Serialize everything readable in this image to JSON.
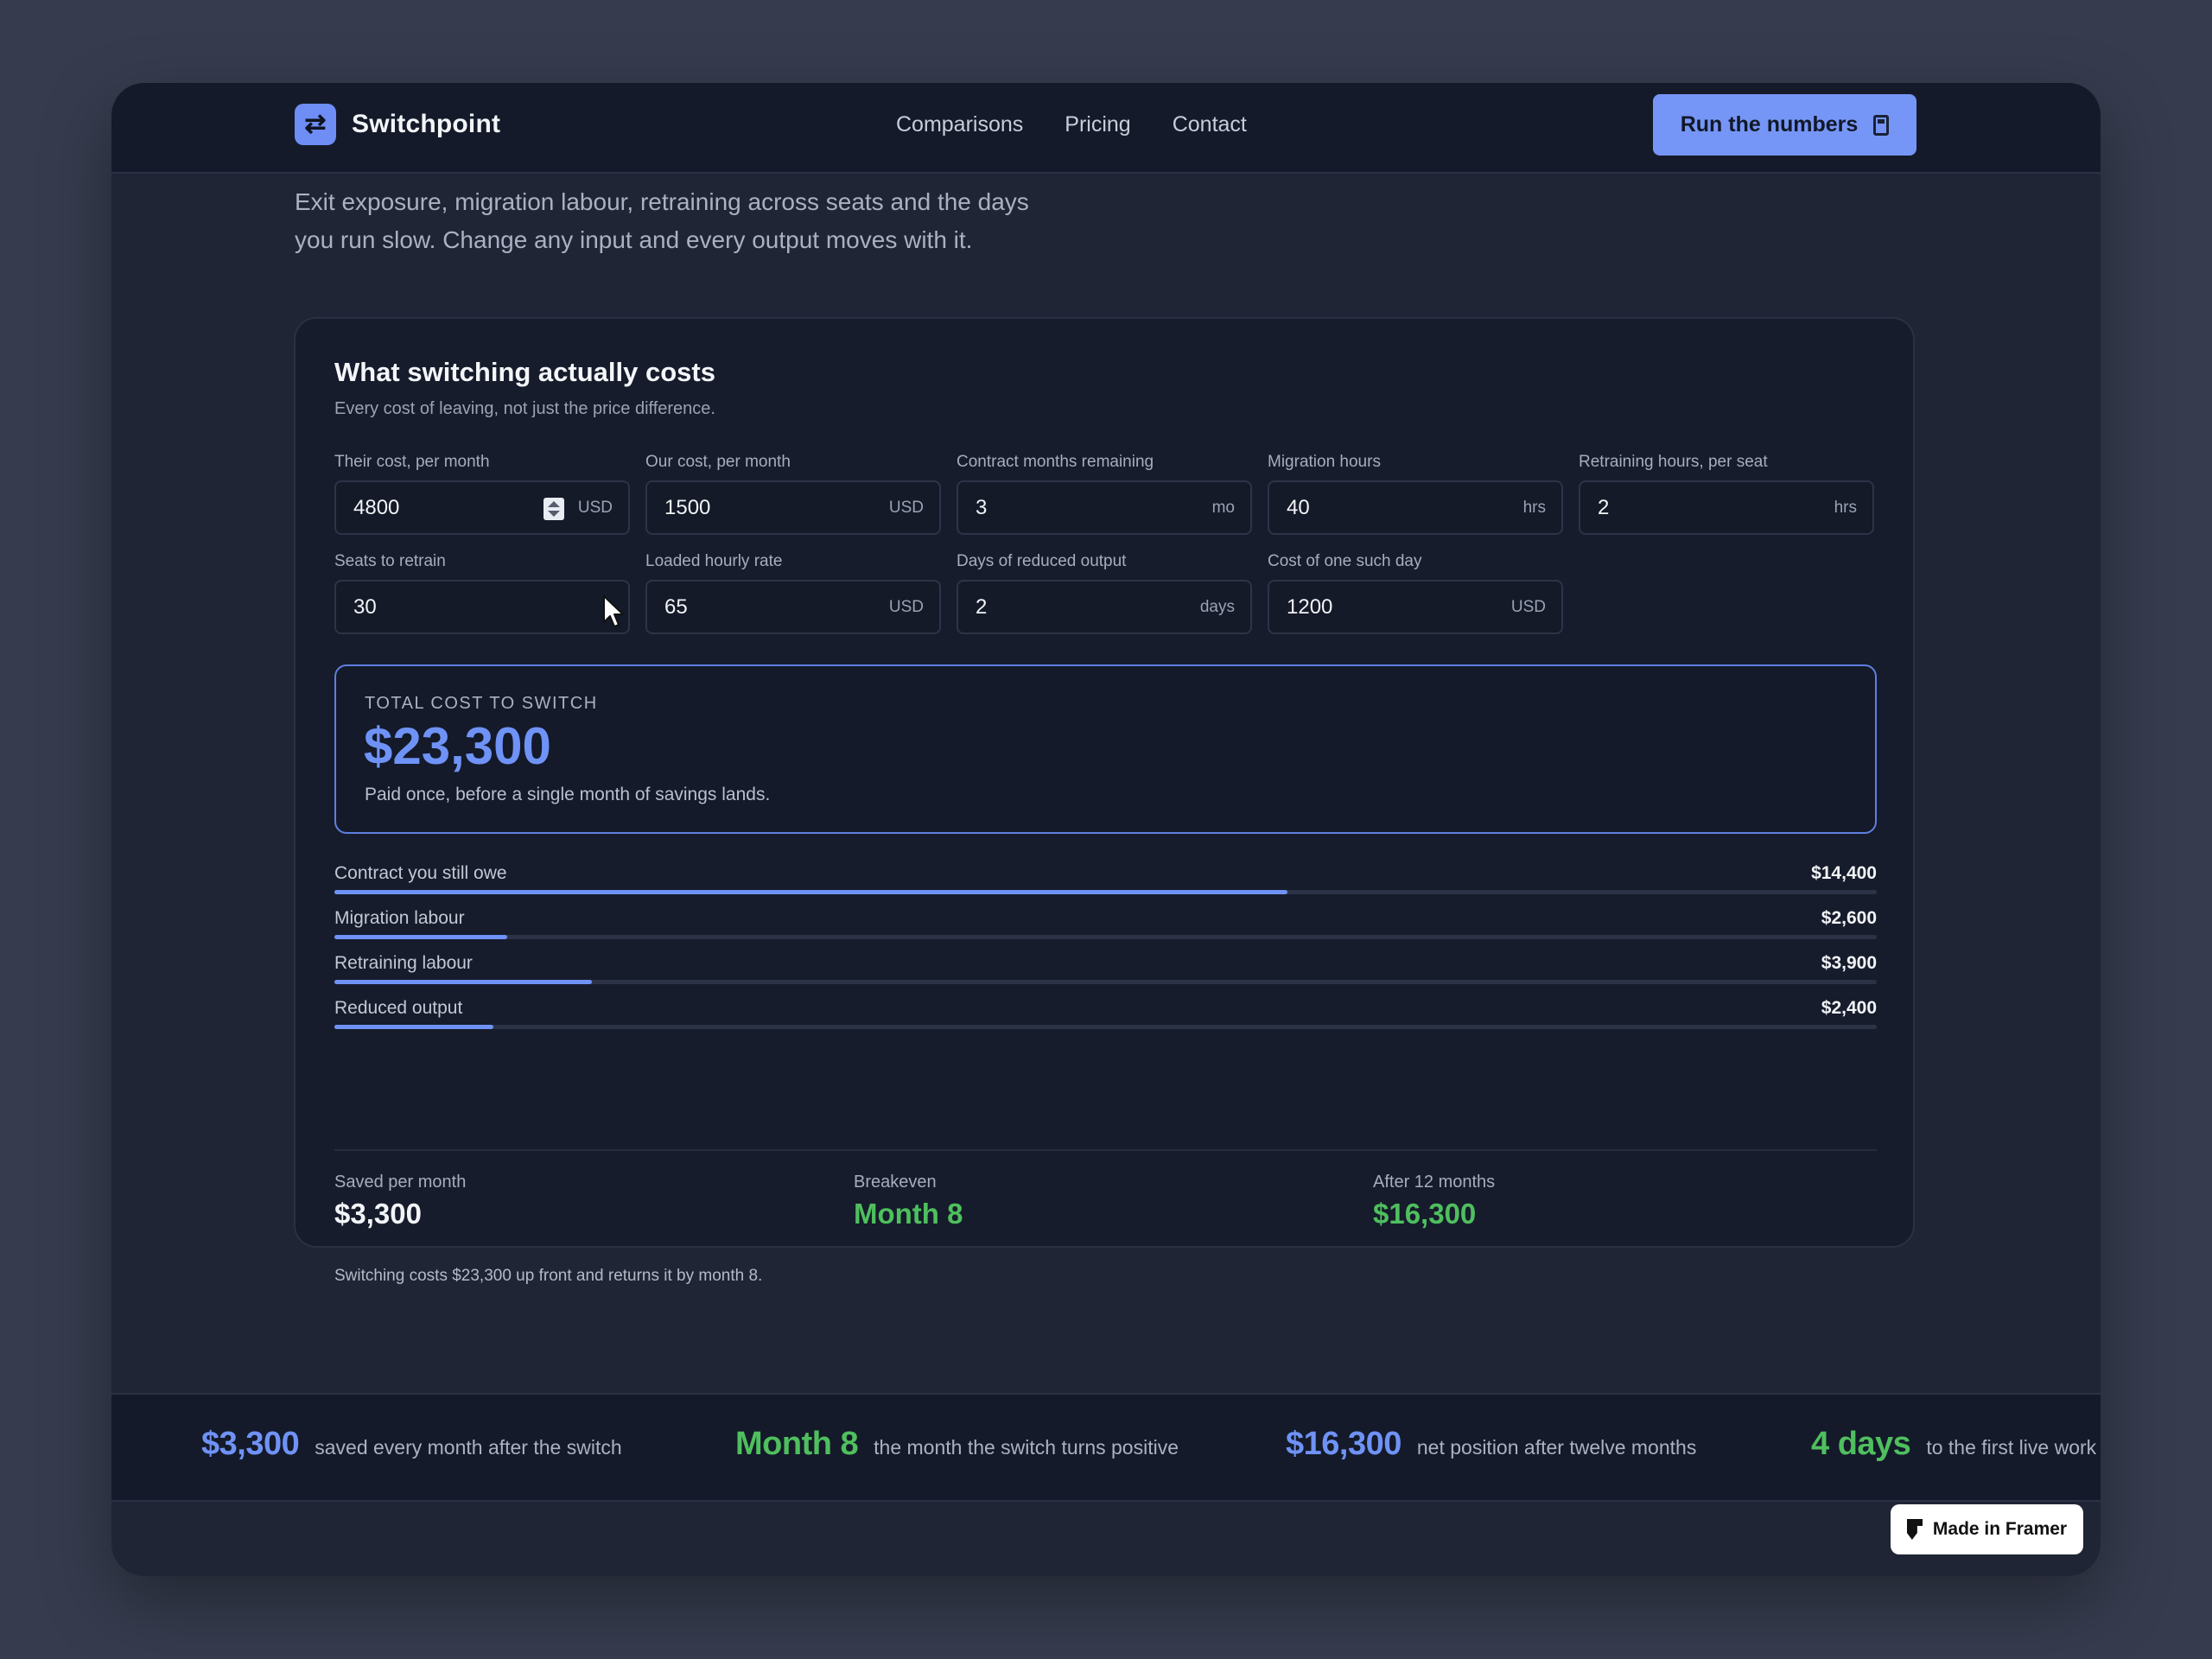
{
  "header": {
    "brand": "Switchpoint",
    "nav": [
      "Comparisons",
      "Pricing",
      "Contact"
    ],
    "cta_label": "Run the numbers"
  },
  "intro": {
    "lead_line1": "Exit exposure, migration labour, retraining across seats and the days",
    "lead_line2": "you run slow. Change any input and every output moves with it."
  },
  "calculator": {
    "title": "What switching actually costs",
    "subtitle": "Every cost of leaving, not just the price difference.",
    "fields": [
      {
        "label": "Their cost, per month",
        "value": "4800",
        "unit": "USD"
      },
      {
        "label": "Our cost, per month",
        "value": "1500",
        "unit": "USD"
      },
      {
        "label": "Contract months remaining",
        "value": "3",
        "unit": "mo"
      },
      {
        "label": "Migration hours",
        "value": "40",
        "unit": "hrs"
      },
      {
        "label": "Retraining hours, per seat",
        "value": "2",
        "unit": "hrs"
      },
      {
        "label": "Seats to retrain",
        "value": "30",
        "unit": ""
      },
      {
        "label": "Loaded hourly rate",
        "value": "65",
        "unit": "USD"
      },
      {
        "label": "Days of reduced output",
        "value": "2",
        "unit": "days"
      },
      {
        "label": "Cost of one such day",
        "value": "1200",
        "unit": "USD"
      }
    ],
    "total": {
      "label": "TOTAL COST TO SWITCH",
      "value": "$23,300",
      "note": "Paid once, before a single month of savings lands."
    },
    "breakdown": [
      {
        "label": "Contract you still owe",
        "amount": "$14,400",
        "fraction": 0.618
      },
      {
        "label": "Migration labour",
        "amount": "$2,600",
        "fraction": 0.112
      },
      {
        "label": "Retraining labour",
        "amount": "$3,900",
        "fraction": 0.167
      },
      {
        "label": "Reduced output",
        "amount": "$2,400",
        "fraction": 0.103
      }
    ],
    "stats": [
      {
        "label": "Saved per month",
        "value": "$3,300",
        "color": "#f2f4f8"
      },
      {
        "label": "Breakeven",
        "value": "Month 8",
        "color": "#4fbf5e"
      },
      {
        "label": "After 12 months",
        "value": "$16,300",
        "color": "#4fbf5e"
      }
    ],
    "summary": "Switching costs $23,300 up front and returns it by month 8."
  },
  "ticker": [
    {
      "value": "$3,300",
      "text": "saved every month after the switch",
      "color": "#6f92f6"
    },
    {
      "value": "Month 8",
      "text": "the month the switch turns positive",
      "color": "#4fbf5e"
    },
    {
      "value": "$16,300",
      "text": "net position after twelve months",
      "color": "#6f92f6"
    },
    {
      "value": "4 days",
      "text": "to the first live work",
      "color": "#4fbf5e"
    }
  ],
  "badge": {
    "label": "Made in Framer"
  },
  "icons": {
    "logo": "swap-arrows-icon",
    "cta": "calculator-icon",
    "stepper": "number-stepper-icon",
    "cursor": "mouse-pointer-icon",
    "framer": "framer-logo-icon"
  }
}
